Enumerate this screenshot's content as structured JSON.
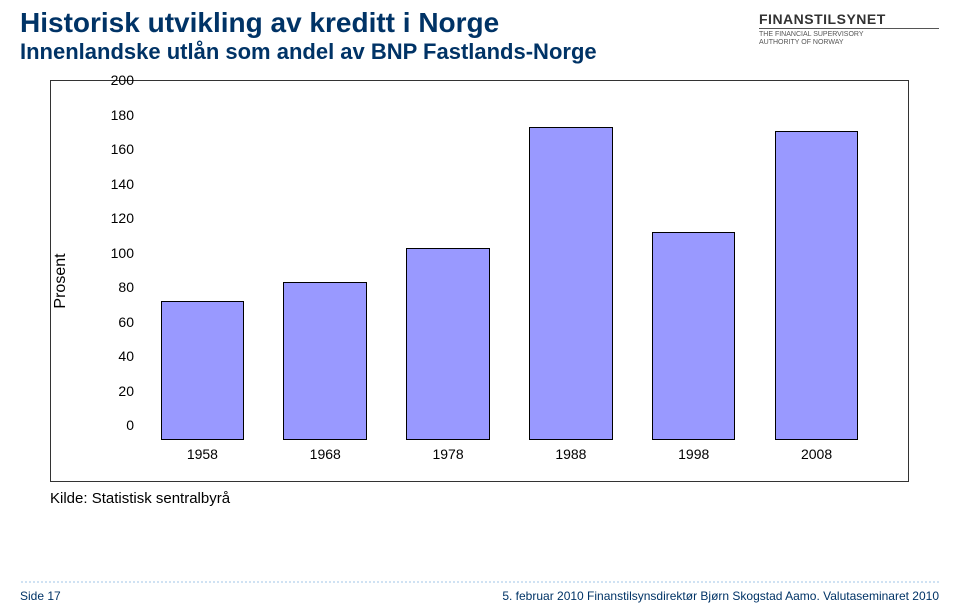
{
  "header": {
    "title": "Historisk utvikling av kreditt i Norge",
    "subtitle": "Innenlandske utlån som andel av BNP Fastlands-Norge"
  },
  "logo": {
    "main": "FINANSTILSYNET",
    "sub1": "THE FINANCIAL SUPERVISORY",
    "sub2": "AUTHORITY OF NORWAY"
  },
  "chart": {
    "type": "bar",
    "ylabel": "Prosent",
    "ylim": [
      0,
      200
    ],
    "ytick_step": 20,
    "yticks": [
      0,
      20,
      40,
      60,
      80,
      100,
      120,
      140,
      160,
      180,
      200
    ],
    "categories": [
      "1958",
      "1968",
      "1978",
      "1988",
      "1998",
      "2008"
    ],
    "values": [
      81,
      92,
      112,
      182,
      121,
      180
    ],
    "bar_color": "#9999ff",
    "bar_border": "#000000",
    "background": "#ffffff",
    "box_border": "#333333"
  },
  "source": "Kilde: Statistisk sentralbyrå",
  "footer": {
    "left": "Side 17",
    "right": "5. februar 2010    Finanstilsynsdirektør Bjørn Skogstad Aamo. Valutaseminaret 2010"
  }
}
